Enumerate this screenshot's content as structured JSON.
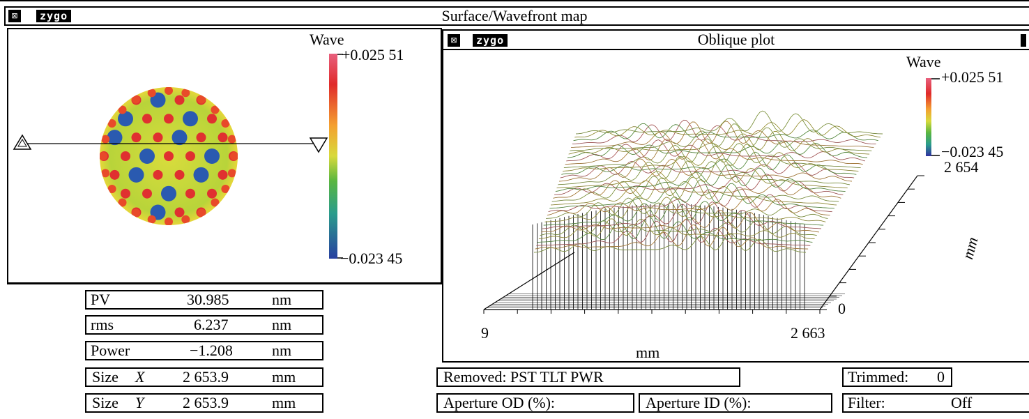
{
  "window": {
    "logo": "zygo",
    "close_glyph": "⊠",
    "title": "Surface/Wavefront map"
  },
  "surface_map": {
    "scale_label": "Wave",
    "scale_max": "+0.025 51",
    "scale_min": "−0.023 45",
    "profile_start_marker": "triangle-up",
    "profile_end_marker": "triangle-down"
  },
  "oblique_plot": {
    "logo": "zygo",
    "close_glyph": "⊠",
    "title": "Oblique plot",
    "scale_label": "Wave",
    "scale_max": "+0.025 51",
    "scale_min": "−0.023 45",
    "x_min": "9",
    "x_max": "2 663",
    "x_unit": "mm",
    "y_max": "2 654",
    "y_min": "0",
    "y_unit": "mm"
  },
  "stats": [
    {
      "label": "PV",
      "value": "30.985",
      "unit": "nm",
      "italic_suffix": ""
    },
    {
      "label": "rms",
      "value": "6.237",
      "unit": "nm",
      "italic_suffix": ""
    },
    {
      "label": "Power",
      "value": "−1.208",
      "unit": "nm",
      "italic_suffix": ""
    },
    {
      "label": "Size",
      "value": "2 653.9",
      "unit": "mm",
      "italic_suffix": "X"
    },
    {
      "label": "Size",
      "value": "2 653.9",
      "unit": "mm",
      "italic_suffix": "Y"
    }
  ],
  "info": {
    "removed": "Removed: PST TLT PWR",
    "trimmed_label": "Trimmed:",
    "trimmed_value": "0",
    "aperture_od": "Aperture OD (%):",
    "aperture_id": "Aperture ID (%):",
    "filter_label": "Filter:",
    "filter_value": "Off"
  },
  "colors": {
    "scale": [
      "#e8607e",
      "#e03030",
      "#f2a030",
      "#c9d840",
      "#5cb040",
      "#2c9c88",
      "#2a5aa8",
      "#2a3a9a"
    ]
  }
}
